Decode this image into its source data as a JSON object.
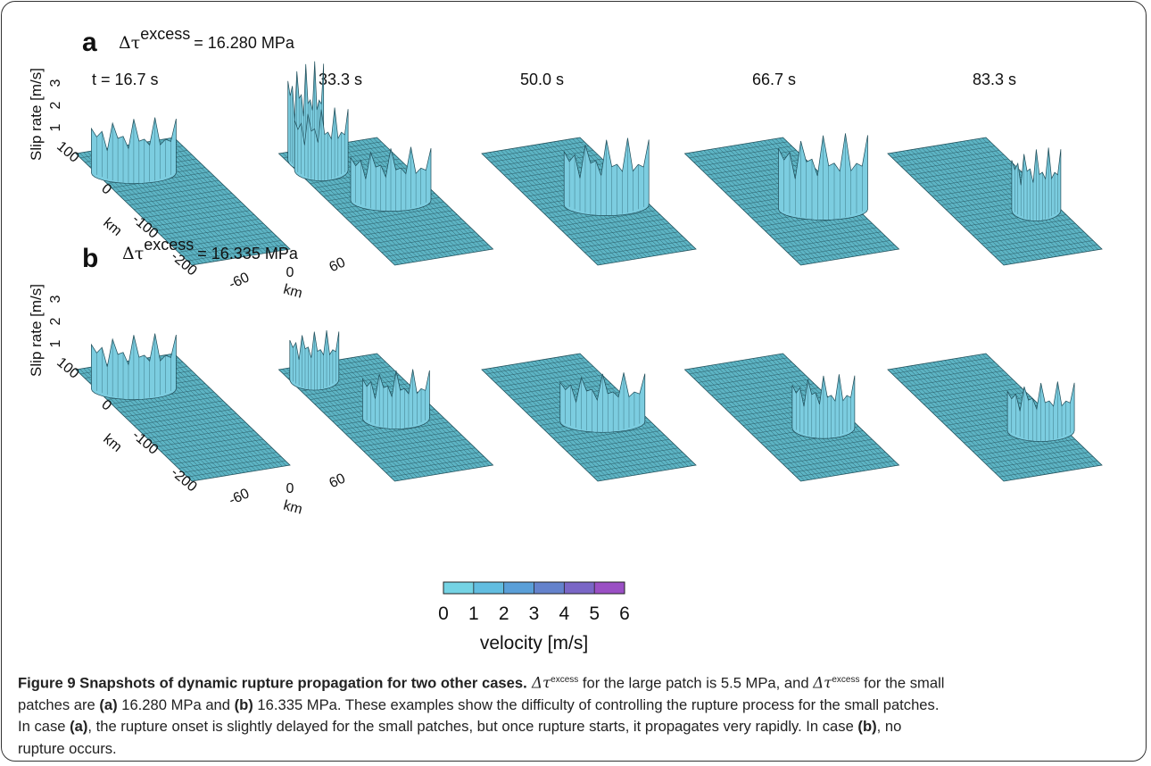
{
  "panels": [
    {
      "label": "a",
      "delta": "Δτ",
      "superscript": "excess",
      "value_text": "= 16.280 MPa",
      "times": [
        "t = 16.7 s",
        "33.3 s",
        "50.0 s",
        "66.7 s",
        "83.3 s"
      ]
    },
    {
      "label": "b",
      "delta": "Δτ",
      "superscript": "excess",
      "value_text": "= 16.335 MPa"
    }
  ],
  "axes": {
    "z_label": "Slip rate [m/s]",
    "z_ticks": [
      1,
      2,
      3
    ],
    "x_ticks": [
      100,
      0,
      -100,
      -200
    ],
    "x_unit": "km",
    "y_ticks": [
      -60,
      0,
      60
    ],
    "y_unit": "km"
  },
  "colorbar": {
    "lim": [
      0,
      6
    ],
    "ticks": [
      0,
      1,
      2,
      3,
      4,
      5,
      6
    ],
    "colors": [
      "#74d3e4",
      "#62bde0",
      "#5a9fd8",
      "#6482cc",
      "#7a66c6",
      "#9a4fc4"
    ],
    "label": "velocity [m/s]"
  },
  "caption": {
    "segments": [
      "Figure 9 Snapshots of dynamic rupture propagation for two other cases.",
      " Δτ",
      "excess",
      " for the large patch is 5.5 MPa, and ",
      "Δτ",
      "excess",
      " for the small",
      "patches are ",
      "(a)",
      " 16.280 MPa and ",
      "(b)",
      " 16.335 MPa. These examples show the difficulty of controlling the rupture process for the small patches.",
      "In case ",
      "(a)",
      ", the rupture onset is slightly delayed for the small patches, but once rupture starts, it propagates very rapidly. In case ",
      "(b)",
      ", no",
      "rupture occurs."
    ]
  }
}
